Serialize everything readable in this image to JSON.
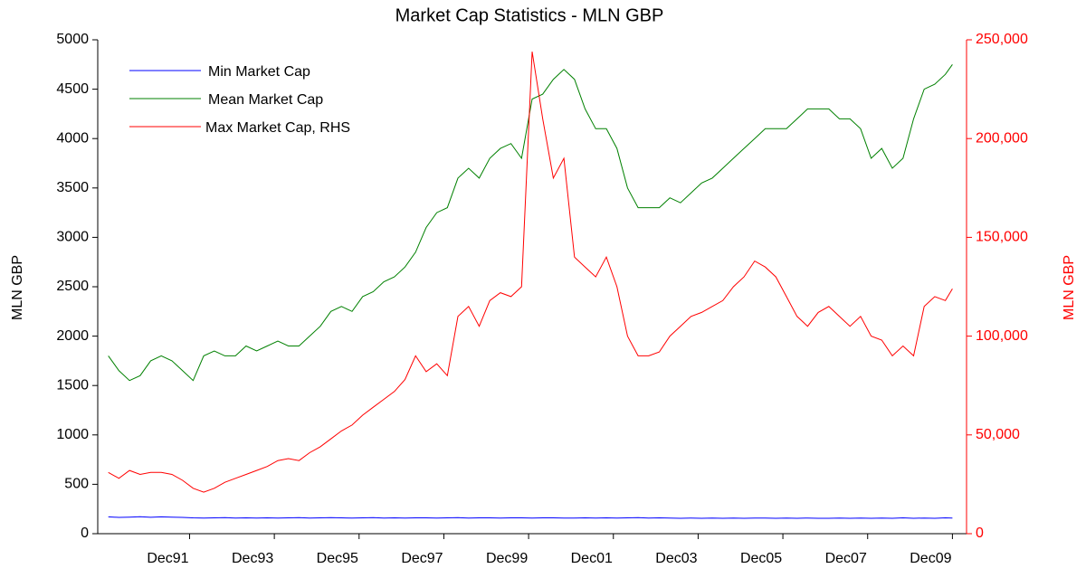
{
  "chart_data": {
    "type": "line",
    "title": "Market Cap Statistics - MLN GBP",
    "ylabel": "MLN GBP",
    "y2label": "MLN GBP",
    "x": [
      "1990-01",
      "1990-04",
      "1990-07",
      "1990-10",
      "1991-01",
      "1991-04",
      "1991-07",
      "1991-10",
      "1992-01",
      "1992-04",
      "1992-07",
      "1992-10",
      "1993-01",
      "1993-04",
      "1993-07",
      "1993-10",
      "1994-01",
      "1994-04",
      "1994-07",
      "1994-10",
      "1995-01",
      "1995-04",
      "1995-07",
      "1995-10",
      "1996-01",
      "1996-04",
      "1996-07",
      "1996-10",
      "1997-01",
      "1997-04",
      "1997-07",
      "1997-10",
      "1998-01",
      "1998-04",
      "1998-07",
      "1998-10",
      "1999-01",
      "1999-04",
      "1999-07",
      "1999-10",
      "2000-01",
      "2000-04",
      "2000-07",
      "2000-10",
      "2001-01",
      "2001-04",
      "2001-07",
      "2001-10",
      "2002-01",
      "2002-04",
      "2002-07",
      "2002-10",
      "2003-01",
      "2003-04",
      "2003-07",
      "2003-10",
      "2004-01",
      "2004-04",
      "2004-07",
      "2004-10",
      "2005-01",
      "2005-04",
      "2005-07",
      "2005-10",
      "2006-01",
      "2006-04",
      "2006-07",
      "2006-10",
      "2007-01",
      "2007-04",
      "2007-07",
      "2007-10",
      "2008-01",
      "2008-04",
      "2008-07",
      "2008-10",
      "2009-01",
      "2009-04",
      "2009-07",
      "2009-10",
      "2009-12"
    ],
    "series": [
      {
        "name": "Min Market Cap",
        "color": "#0000ff",
        "axis": "y",
        "values": [
          170,
          165,
          168,
          172,
          166,
          170,
          168,
          165,
          160,
          158,
          160,
          162,
          158,
          160,
          158,
          160,
          158,
          160,
          162,
          158,
          160,
          162,
          160,
          158,
          160,
          162,
          158,
          160,
          158,
          160,
          160,
          158,
          160,
          162,
          158,
          160,
          160,
          158,
          160,
          160,
          158,
          160,
          160,
          158,
          158,
          160,
          158,
          160,
          158,
          160,
          162,
          158,
          160,
          158,
          156,
          158,
          156,
          158,
          156,
          158,
          156,
          158,
          158,
          156,
          158,
          156,
          158,
          156,
          156,
          158,
          156,
          158,
          156,
          158,
          156,
          160,
          156,
          158,
          156,
          160,
          158
        ]
      },
      {
        "name": "Mean Market Cap",
        "color": "#008000",
        "axis": "y",
        "values": [
          1800,
          1650,
          1550,
          1600,
          1750,
          1800,
          1750,
          1650,
          1550,
          1800,
          1850,
          1800,
          1800,
          1900,
          1850,
          1900,
          1950,
          1900,
          1900,
          2000,
          2100,
          2250,
          2300,
          2250,
          2400,
          2450,
          2550,
          2600,
          2700,
          2850,
          3100,
          3250,
          3300,
          3600,
          3700,
          3600,
          3800,
          3900,
          3950,
          3800,
          4400,
          4450,
          4600,
          4700,
          4600,
          4300,
          4100,
          4100,
          3900,
          3500,
          3300,
          3300,
          3300,
          3400,
          3350,
          3450,
          3550,
          3600,
          3700,
          3800,
          3900,
          4000,
          4100,
          4100,
          4100,
          4200,
          4300,
          4300,
          4300,
          4200,
          4200,
          4100,
          3800,
          3900,
          3700,
          3800,
          4200,
          4500,
          4550,
          4650,
          4750
        ]
      },
      {
        "name": "Max Market Cap, RHS",
        "color": "#ff0000",
        "axis": "y2",
        "values": [
          31000,
          28000,
          32000,
          30000,
          31000,
          31000,
          30000,
          27000,
          23000,
          21000,
          23000,
          26000,
          28000,
          30000,
          32000,
          34000,
          37000,
          38000,
          37000,
          41000,
          44000,
          48000,
          52000,
          55000,
          60000,
          64000,
          68000,
          72000,
          78000,
          90000,
          82000,
          86000,
          80000,
          110000,
          115000,
          105000,
          118000,
          122000,
          120000,
          125000,
          244000,
          210000,
          180000,
          190000,
          140000,
          135000,
          130000,
          140000,
          125000,
          100000,
          90000,
          90000,
          92000,
          100000,
          105000,
          110000,
          112000,
          115000,
          118000,
          125000,
          130000,
          138000,
          135000,
          130000,
          120000,
          110000,
          105000,
          112000,
          115000,
          110000,
          105000,
          110000,
          100000,
          98000,
          90000,
          95000,
          90000,
          115000,
          120000,
          118000,
          124000
        ]
      }
    ],
    "xlim": [
      "1989-10",
      "2010-04"
    ],
    "xticks": [
      {
        "value": "1991-12",
        "label": "Dec91"
      },
      {
        "value": "1993-12",
        "label": "Dec93"
      },
      {
        "value": "1995-12",
        "label": "Dec95"
      },
      {
        "value": "1997-12",
        "label": "Dec97"
      },
      {
        "value": "1999-12",
        "label": "Dec99"
      },
      {
        "value": "2001-12",
        "label": "Dec01"
      },
      {
        "value": "2003-12",
        "label": "Dec03"
      },
      {
        "value": "2005-12",
        "label": "Dec05"
      },
      {
        "value": "2007-12",
        "label": "Dec07"
      },
      {
        "value": "2009-12",
        "label": "Dec09"
      }
    ],
    "ylim": [
      0,
      5000
    ],
    "yticks": [
      0,
      500,
      1000,
      1500,
      2000,
      2500,
      3000,
      3500,
      4000,
      4500,
      5000
    ],
    "y2lim": [
      0,
      250000
    ],
    "y2ticks": [
      0,
      {
        "value": 50000,
        "label": "50,000"
      },
      {
        "value": 100000,
        "label": "100,000"
      },
      {
        "value": 150000,
        "label": "150,000"
      },
      {
        "value": 200000,
        "label": "200,000"
      },
      {
        "value": 250000,
        "label": "250,000"
      }
    ],
    "y2color": "#ff0000",
    "legend": "upper left"
  }
}
